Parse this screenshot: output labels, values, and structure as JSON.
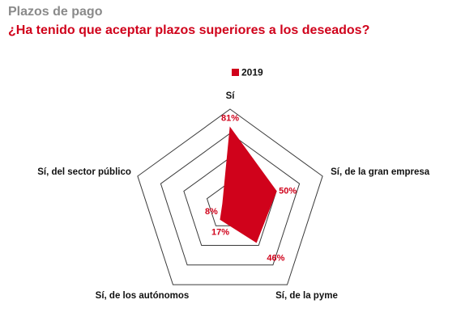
{
  "header": {
    "title": "Plazos de pago",
    "subtitle": "¿Ha tenido que aceptar plazos superiores a los deseados?"
  },
  "colors": {
    "series": "#d0021b",
    "grid": "#3a3a3a",
    "title": "#8a8a8a"
  },
  "chart_data": {
    "type": "radar",
    "legend_position": "top",
    "categories": [
      "Sí",
      "Sí, de la gran empresa",
      "Sí, de la pyme",
      "Sí, de los autónomos",
      "Sí, del sector público"
    ],
    "series": [
      {
        "name": "2019",
        "values": [
          81,
          50,
          46,
          17,
          8
        ],
        "labels": [
          "81%",
          "50%",
          "46%",
          "17%",
          "8%"
        ]
      }
    ],
    "range": [
      0,
      100
    ],
    "grid_levels": 4
  }
}
